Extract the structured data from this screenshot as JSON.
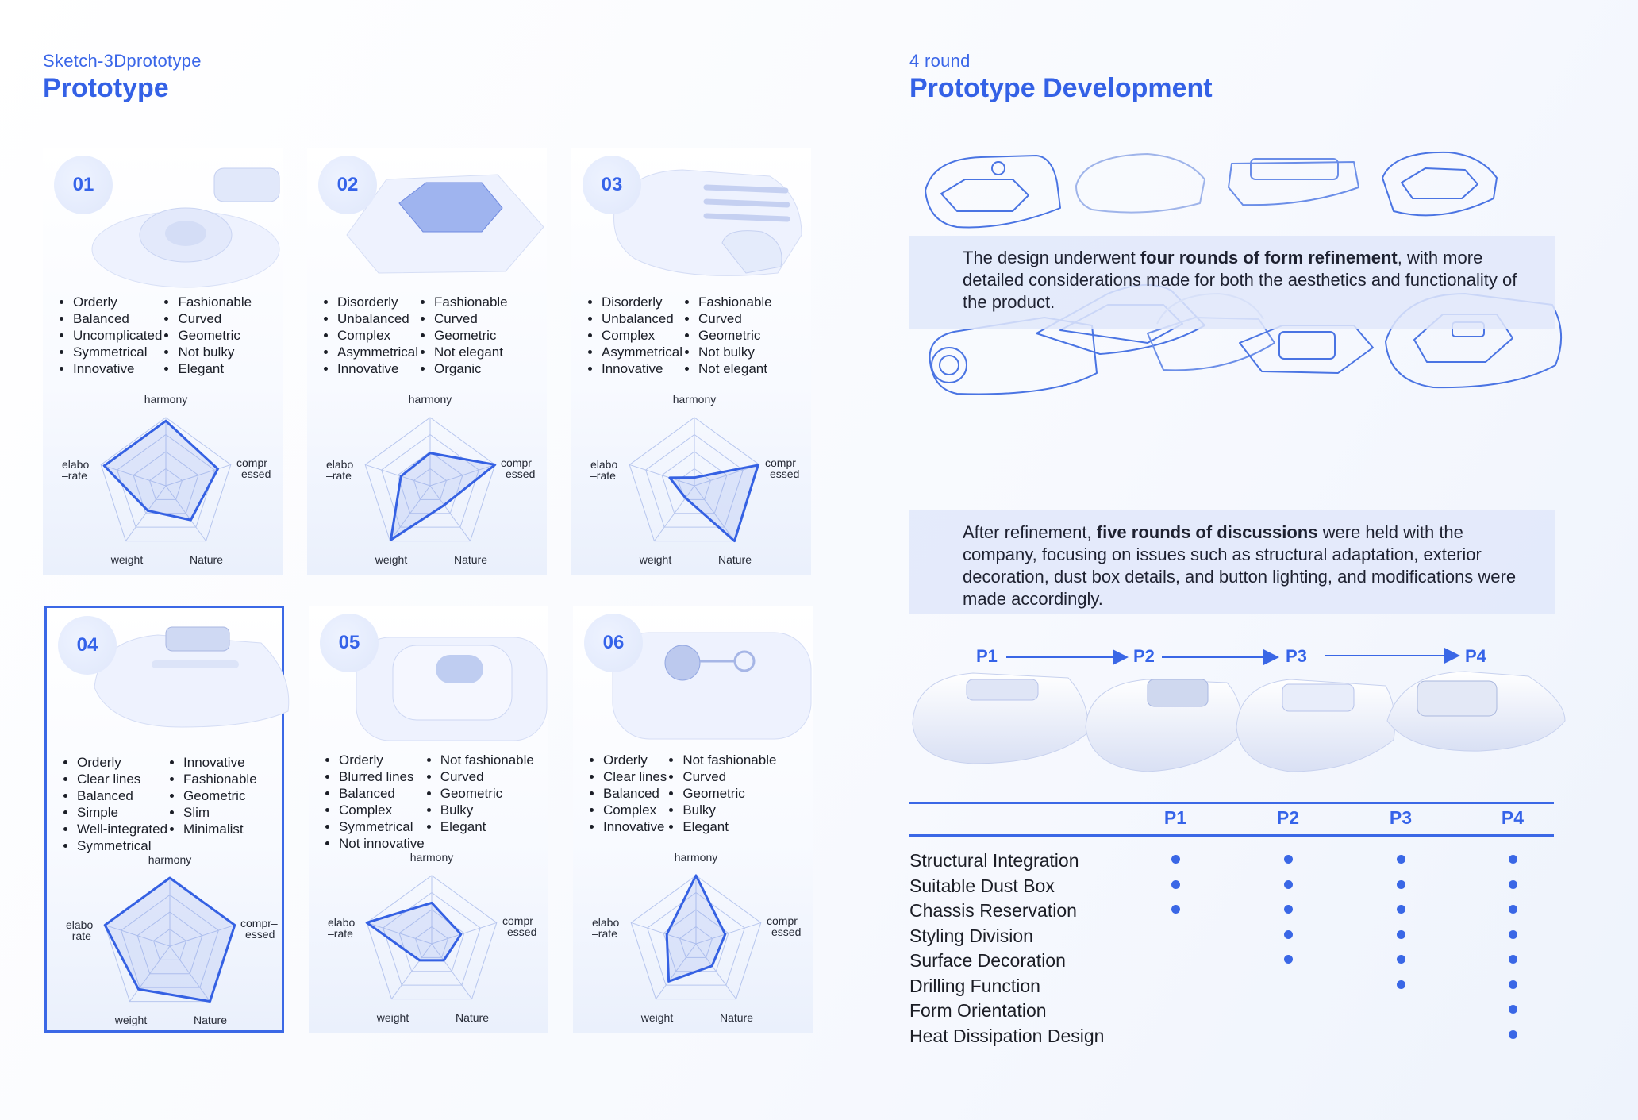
{
  "left": {
    "subtitle": "Sketch-3Dprototype",
    "title": "Prototype"
  },
  "right": {
    "subtitle": "4 round",
    "title": "Prototype Development"
  },
  "radar_labels": {
    "harmony": "harmony",
    "compressed_1": "compr–",
    "compressed_2": "essed",
    "elaborate_1": "elabo",
    "elaborate_2": "–rate",
    "weight": "weight",
    "nature": "Nature"
  },
  "prototypes": [
    {
      "num": "01",
      "col1": [
        "Orderly",
        "Balanced",
        "Uncomplicated",
        "Symmetrical",
        "Innovative"
      ],
      "col2": [
        "Fashionable",
        "Curved",
        "Geometric",
        "Not bulky",
        "Elegant"
      ],
      "radar": [
        0.95,
        0.8,
        0.62,
        0.45,
        0.95
      ]
    },
    {
      "num": "02",
      "col1": [
        "Disorderly",
        "Unbalanced",
        "Complex",
        "Asymmetrical",
        "Innovative"
      ],
      "col2": [
        "Fashionable",
        "Curved",
        "Geometric",
        "Not elegant",
        "Organic"
      ],
      "radar": [
        0.48,
        1.0,
        0.35,
        0.98,
        0.45
      ]
    },
    {
      "num": "03",
      "col1": [
        "Disorderly",
        "Unbalanced",
        "Complex",
        "Asymmetrical",
        "Innovative"
      ],
      "col2": [
        "Fashionable",
        "Curved",
        "Geometric",
        "Not bulky",
        "Not elegant"
      ],
      "radar": [
        0.12,
        0.98,
        1.0,
        0.22,
        0.38
      ]
    },
    {
      "num": "04",
      "col1": [
        "Orderly",
        "Clear lines",
        "Balanced",
        "Simple",
        "Well-integrated",
        "Symmetrical"
      ],
      "col2": [
        "Innovative",
        "Fashionable",
        "Geometric",
        "Slim",
        "Minimalist"
      ],
      "radar": [
        1.0,
        1.0,
        1.0,
        0.78,
        1.0
      ]
    },
    {
      "num": "05",
      "col1": [
        "Orderly",
        "Blurred lines",
        "Balanced",
        "Complex",
        "Symmetrical",
        "Not innovative"
      ],
      "col2": [
        "Not fashionable",
        "Curved",
        "Geometric",
        "Bulky",
        "Elegant"
      ],
      "radar": [
        0.6,
        0.45,
        0.3,
        0.3,
        1.0
      ]
    },
    {
      "num": "06",
      "col1": [
        "Orderly",
        "Clear lines",
        "Balanced",
        "Complex",
        "Innovative"
      ],
      "col2": [
        "Not fashionable",
        "Curved",
        "Geometric",
        "Bulky",
        "Elegant"
      ],
      "radar": [
        1.0,
        0.45,
        0.4,
        0.68,
        0.45
      ]
    }
  ],
  "selected_prototype": "04",
  "text1": {
    "pre": "The design underwent ",
    "bold": "four rounds of form refinement",
    "post": ", with more detailed considerations made for both the aesthetics and functionality of the product."
  },
  "text2": {
    "pre": "After refinement, ",
    "bold": "five rounds of discussions",
    "post": " were held with the company, focusing on issues such as structural adaptation, exterior decoration, dust box details, and button lighting, and modifications were made accordingly."
  },
  "progression": [
    "P1",
    "P2",
    "P3",
    "P4"
  ],
  "table": {
    "columns": [
      "P1",
      "P2",
      "P3",
      "P4"
    ],
    "rows": [
      {
        "label": "Structural Integration",
        "marks": [
          true,
          true,
          true,
          true
        ]
      },
      {
        "label": "Suitable Dust Box",
        "marks": [
          true,
          true,
          true,
          true
        ]
      },
      {
        "label": "Chassis Reservation",
        "marks": [
          true,
          true,
          true,
          true
        ]
      },
      {
        "label": "Styling Division",
        "marks": [
          false,
          true,
          true,
          true
        ]
      },
      {
        "label": "Surface Decoration",
        "marks": [
          false,
          true,
          true,
          true
        ]
      },
      {
        "label": "Drilling Function",
        "marks": [
          false,
          false,
          true,
          true
        ]
      },
      {
        "label": "Form Orientation",
        "marks": [
          false,
          false,
          false,
          true
        ]
      },
      {
        "label": "Heat Dissipation Design",
        "marks": [
          false,
          false,
          false,
          true
        ]
      }
    ]
  },
  "colors": {
    "accent": "#3563e9",
    "sketch_line": "#4a74e3",
    "band": "#e0e8fa"
  }
}
